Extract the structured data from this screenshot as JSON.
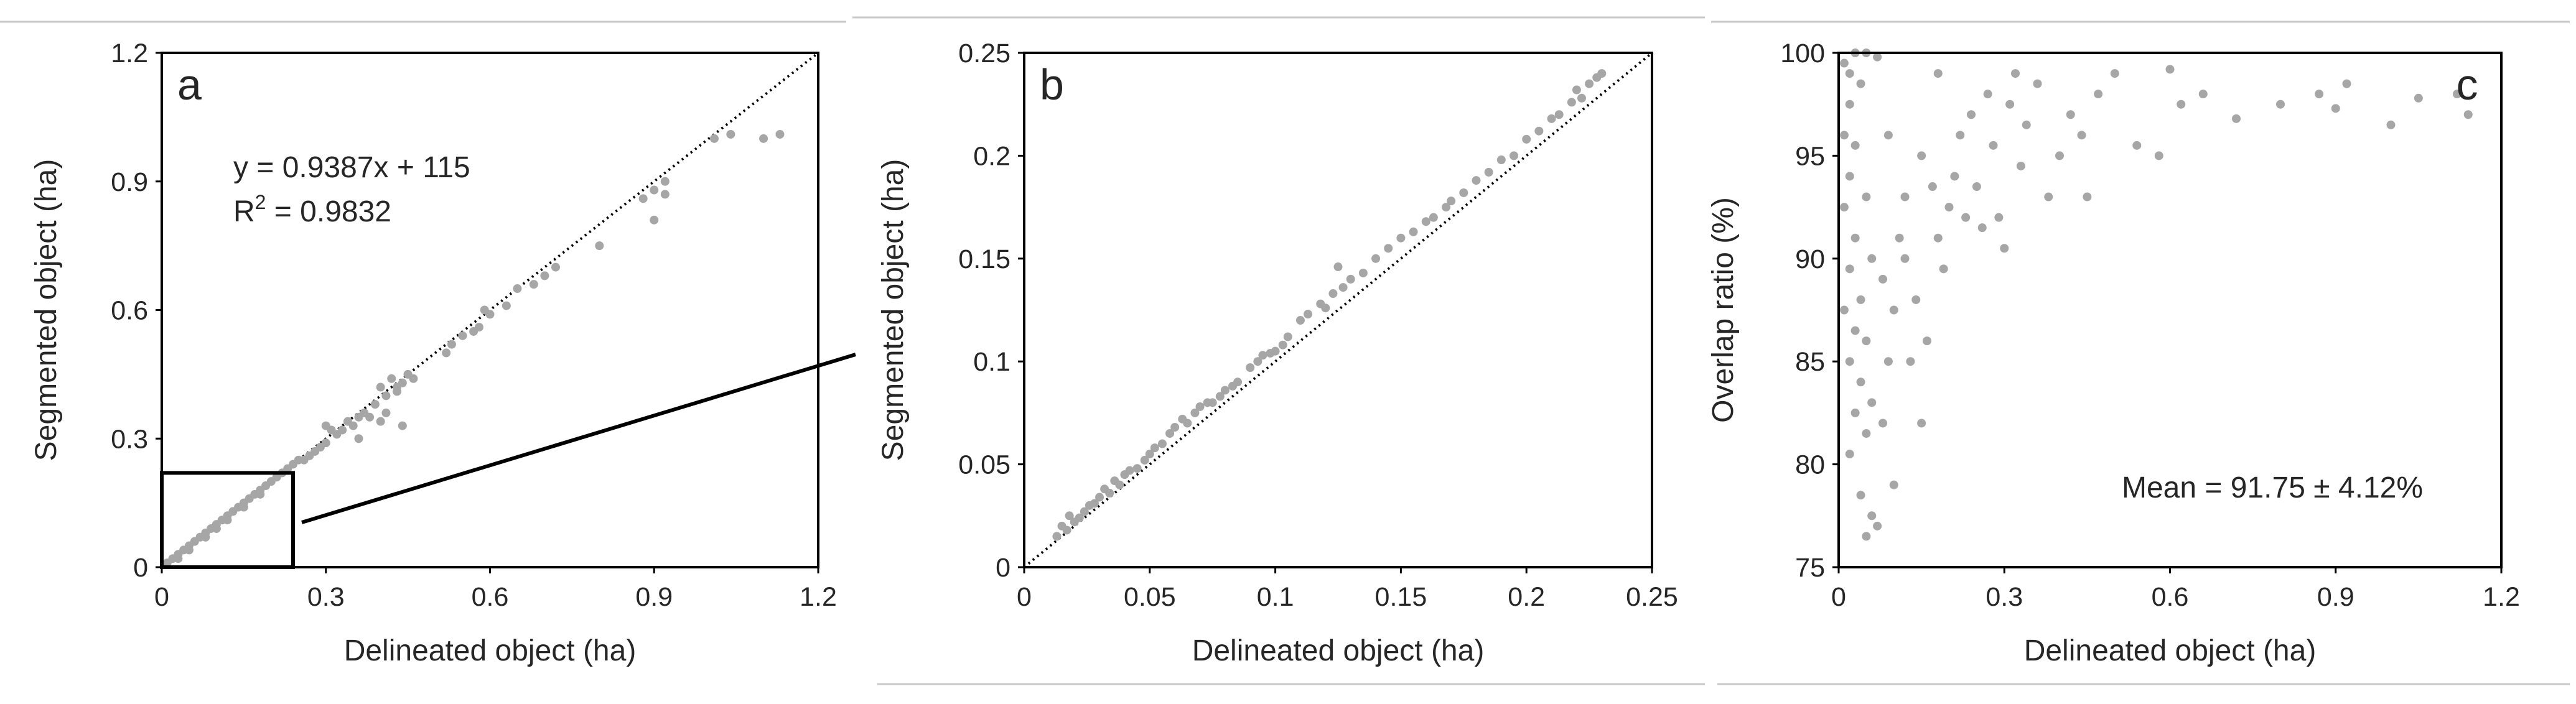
{
  "colors": {
    "points": "#a6a6a6",
    "axes": "#000000",
    "text": "#262626",
    "separator": "#c8c8c8"
  },
  "chart_data": [
    {
      "panel": "a",
      "type": "scatter",
      "xlabel": "Delineated object (ha)",
      "ylabel": "Segmented object (ha)",
      "xlim": [
        0,
        1.2
      ],
      "ylim": [
        0,
        1.2
      ],
      "xticks": [
        "0",
        "0.3",
        "0.6",
        "0.9",
        "1.2"
      ],
      "yticks": [
        "0",
        "0.3",
        "0.6",
        "0.9",
        "1.2"
      ],
      "grid": false,
      "reference_line": "1:1 dotted",
      "inset_box": {
        "x": [
          0,
          0.24
        ],
        "y": [
          0,
          0.22
        ]
      },
      "annotations": {
        "equation": "y = 0.9387x + 115",
        "r2_prefix": "R",
        "r2_sup": "2",
        "r2_value": " = 0.9832"
      },
      "points": [
        [
          0.01,
          0.01
        ],
        [
          0.02,
          0.02
        ],
        [
          0.03,
          0.03
        ],
        [
          0.04,
          0.04
        ],
        [
          0.05,
          0.05
        ],
        [
          0.06,
          0.06
        ],
        [
          0.07,
          0.07
        ],
        [
          0.08,
          0.08
        ],
        [
          0.09,
          0.09
        ],
        [
          0.1,
          0.1
        ],
        [
          0.11,
          0.11
        ],
        [
          0.12,
          0.12
        ],
        [
          0.13,
          0.13
        ],
        [
          0.14,
          0.14
        ],
        [
          0.15,
          0.15
        ],
        [
          0.16,
          0.16
        ],
        [
          0.17,
          0.17
        ],
        [
          0.18,
          0.18
        ],
        [
          0.19,
          0.19
        ],
        [
          0.2,
          0.2
        ],
        [
          0.21,
          0.21
        ],
        [
          0.22,
          0.22
        ],
        [
          0.23,
          0.23
        ],
        [
          0.03,
          0.02
        ],
        [
          0.05,
          0.04
        ],
        [
          0.08,
          0.07
        ],
        [
          0.1,
          0.09
        ],
        [
          0.12,
          0.11
        ],
        [
          0.15,
          0.14
        ],
        [
          0.18,
          0.17
        ],
        [
          0.24,
          0.24
        ],
        [
          0.25,
          0.25
        ],
        [
          0.26,
          0.25
        ],
        [
          0.27,
          0.26
        ],
        [
          0.28,
          0.27
        ],
        [
          0.29,
          0.28
        ],
        [
          0.3,
          0.29
        ],
        [
          0.3,
          0.33
        ],
        [
          0.31,
          0.32
        ],
        [
          0.32,
          0.31
        ],
        [
          0.33,
          0.32
        ],
        [
          0.34,
          0.34
        ],
        [
          0.35,
          0.33
        ],
        [
          0.36,
          0.35
        ],
        [
          0.37,
          0.36
        ],
        [
          0.38,
          0.35
        ],
        [
          0.39,
          0.38
        ],
        [
          0.4,
          0.42
        ],
        [
          0.41,
          0.4
        ],
        [
          0.41,
          0.36
        ],
        [
          0.42,
          0.44
        ],
        [
          0.43,
          0.42
        ],
        [
          0.43,
          0.41
        ],
        [
          0.44,
          0.43
        ],
        [
          0.44,
          0.33
        ],
        [
          0.45,
          0.45
        ],
        [
          0.46,
          0.44
        ],
        [
          0.36,
          0.3
        ],
        [
          0.4,
          0.34
        ],
        [
          0.52,
          0.5
        ],
        [
          0.53,
          0.52
        ],
        [
          0.55,
          0.54
        ],
        [
          0.57,
          0.55
        ],
        [
          0.58,
          0.56
        ],
        [
          0.59,
          0.6
        ],
        [
          0.6,
          0.59
        ],
        [
          0.63,
          0.61
        ],
        [
          0.65,
          0.65
        ],
        [
          0.68,
          0.66
        ],
        [
          0.7,
          0.68
        ],
        [
          0.72,
          0.7
        ],
        [
          0.8,
          0.75
        ],
        [
          0.88,
          0.86
        ],
        [
          0.9,
          0.88
        ],
        [
          0.92,
          0.87
        ],
        [
          0.92,
          0.9
        ],
        [
          0.9,
          0.81
        ],
        [
          1.01,
          1.0
        ],
        [
          1.04,
          1.01
        ],
        [
          1.1,
          1.0
        ],
        [
          1.13,
          1.01
        ]
      ]
    },
    {
      "panel": "b",
      "type": "scatter",
      "xlabel": "Delineated object (ha)",
      "ylabel": "Segmented object (ha)",
      "xlim": [
        0,
        0.25
      ],
      "ylim": [
        0,
        0.25
      ],
      "xticks": [
        "0",
        "0.05",
        "0.1",
        "0.15",
        "0.2",
        "0.25"
      ],
      "yticks": [
        "0",
        "0.05",
        "0.1",
        "0.15",
        "0.2",
        "0.25"
      ],
      "grid": false,
      "reference_line": "1:1 dotted",
      "points": [
        [
          0.013,
          0.015
        ],
        [
          0.015,
          0.02
        ],
        [
          0.017,
          0.018
        ],
        [
          0.018,
          0.025
        ],
        [
          0.02,
          0.022
        ],
        [
          0.022,
          0.024
        ],
        [
          0.024,
          0.027
        ],
        [
          0.026,
          0.03
        ],
        [
          0.028,
          0.031
        ],
        [
          0.03,
          0.034
        ],
        [
          0.032,
          0.038
        ],
        [
          0.034,
          0.036
        ],
        [
          0.036,
          0.042
        ],
        [
          0.038,
          0.04
        ],
        [
          0.04,
          0.045
        ],
        [
          0.042,
          0.047
        ],
        [
          0.045,
          0.048
        ],
        [
          0.048,
          0.052
        ],
        [
          0.05,
          0.055
        ],
        [
          0.052,
          0.058
        ],
        [
          0.055,
          0.06
        ],
        [
          0.058,
          0.065
        ],
        [
          0.06,
          0.068
        ],
        [
          0.063,
          0.072
        ],
        [
          0.065,
          0.07
        ],
        [
          0.068,
          0.075
        ],
        [
          0.07,
          0.078
        ],
        [
          0.073,
          0.08
        ],
        [
          0.075,
          0.08
        ],
        [
          0.078,
          0.083
        ],
        [
          0.08,
          0.086
        ],
        [
          0.083,
          0.088
        ],
        [
          0.085,
          0.09
        ],
        [
          0.09,
          0.097
        ],
        [
          0.093,
          0.1
        ],
        [
          0.095,
          0.103
        ],
        [
          0.098,
          0.104
        ],
        [
          0.1,
          0.105
        ],
        [
          0.103,
          0.108
        ],
        [
          0.105,
          0.112
        ],
        [
          0.11,
          0.12
        ],
        [
          0.113,
          0.123
        ],
        [
          0.118,
          0.128
        ],
        [
          0.12,
          0.126
        ],
        [
          0.123,
          0.133
        ],
        [
          0.125,
          0.146
        ],
        [
          0.127,
          0.136
        ],
        [
          0.13,
          0.14
        ],
        [
          0.135,
          0.143
        ],
        [
          0.14,
          0.15
        ],
        [
          0.145,
          0.155
        ],
        [
          0.15,
          0.16
        ],
        [
          0.155,
          0.163
        ],
        [
          0.16,
          0.168
        ],
        [
          0.163,
          0.17
        ],
        [
          0.168,
          0.175
        ],
        [
          0.17,
          0.178
        ],
        [
          0.175,
          0.182
        ],
        [
          0.18,
          0.188
        ],
        [
          0.185,
          0.192
        ],
        [
          0.19,
          0.198
        ],
        [
          0.195,
          0.2
        ],
        [
          0.2,
          0.208
        ],
        [
          0.205,
          0.212
        ],
        [
          0.21,
          0.218
        ],
        [
          0.213,
          0.22
        ],
        [
          0.218,
          0.226
        ],
        [
          0.22,
          0.232
        ],
        [
          0.222,
          0.228
        ],
        [
          0.225,
          0.235
        ],
        [
          0.228,
          0.238
        ],
        [
          0.23,
          0.24
        ]
      ]
    },
    {
      "panel": "c",
      "type": "scatter",
      "xlabel": "Delineated object (ha)",
      "ylabel": "Overlap ratio (%)",
      "xlim": [
        0,
        1.2
      ],
      "ylim": [
        75,
        100
      ],
      "xticks": [
        "0",
        "0.3",
        "0.6",
        "0.9",
        "1.2"
      ],
      "yticks": [
        "75",
        "80",
        "85",
        "90",
        "95",
        "100"
      ],
      "grid": false,
      "annotations": {
        "mean": "Mean = 91.75 ± 4.12%"
      },
      "points": [
        [
          0.01,
          99.5
        ],
        [
          0.02,
          99.0
        ],
        [
          0.03,
          100
        ],
        [
          0.05,
          100
        ],
        [
          0.07,
          99.8
        ],
        [
          0.04,
          98.5
        ],
        [
          0.02,
          97.5
        ],
        [
          0.01,
          96.0
        ],
        [
          0.03,
          95.5
        ],
        [
          0.02,
          94.0
        ],
        [
          0.05,
          93.0
        ],
        [
          0.01,
          92.5
        ],
        [
          0.03,
          91.0
        ],
        [
          0.06,
          90.0
        ],
        [
          0.02,
          89.5
        ],
        [
          0.04,
          88.0
        ],
        [
          0.01,
          87.5
        ],
        [
          0.03,
          86.5
        ],
        [
          0.05,
          86.0
        ],
        [
          0.02,
          85.0
        ],
        [
          0.04,
          84.0
        ],
        [
          0.06,
          83.0
        ],
        [
          0.03,
          82.5
        ],
        [
          0.05,
          81.5
        ],
        [
          0.02,
          80.5
        ],
        [
          0.04,
          78.5
        ],
        [
          0.06,
          77.5
        ],
        [
          0.05,
          76.5
        ],
        [
          0.07,
          77.0
        ],
        [
          0.1,
          79.0
        ],
        [
          0.08,
          82.0
        ],
        [
          0.09,
          85.0
        ],
        [
          0.1,
          87.5
        ],
        [
          0.08,
          89.0
        ],
        [
          0.12,
          90.0
        ],
        [
          0.14,
          88.0
        ],
        [
          0.13,
          85.0
        ],
        [
          0.15,
          82.0
        ],
        [
          0.16,
          86.0
        ],
        [
          0.12,
          93.0
        ],
        [
          0.15,
          95.0
        ],
        [
          0.17,
          93.5
        ],
        [
          0.18,
          91.0
        ],
        [
          0.19,
          89.5
        ],
        [
          0.2,
          92.5
        ],
        [
          0.21,
          94.0
        ],
        [
          0.22,
          96.0
        ],
        [
          0.23,
          92.0
        ],
        [
          0.24,
          97.0
        ],
        [
          0.25,
          93.5
        ],
        [
          0.26,
          91.5
        ],
        [
          0.27,
          98.0
        ],
        [
          0.28,
          95.5
        ],
        [
          0.29,
          92.0
        ],
        [
          0.3,
          90.5
        ],
        [
          0.31,
          97.5
        ],
        [
          0.32,
          99.0
        ],
        [
          0.33,
          94.5
        ],
        [
          0.34,
          96.5
        ],
        [
          0.36,
          98.5
        ],
        [
          0.38,
          93.0
        ],
        [
          0.4,
          95.0
        ],
        [
          0.42,
          97.0
        ],
        [
          0.44,
          96.0
        ],
        [
          0.45,
          93.0
        ],
        [
          0.47,
          98.0
        ],
        [
          0.5,
          99.0
        ],
        [
          0.54,
          95.5
        ],
        [
          0.58,
          95.0
        ],
        [
          0.6,
          99.2
        ],
        [
          0.62,
          97.5
        ],
        [
          0.66,
          98.0
        ],
        [
          0.72,
          96.8
        ],
        [
          0.8,
          97.5
        ],
        [
          0.87,
          98.0
        ],
        [
          0.9,
          97.3
        ],
        [
          0.92,
          98.5
        ],
        [
          1.0,
          96.5
        ],
        [
          1.05,
          97.8
        ],
        [
          1.12,
          98.0
        ],
        [
          1.14,
          97.0
        ],
        [
          0.18,
          99.0
        ],
        [
          0.09,
          96.0
        ],
        [
          0.11,
          91.0
        ]
      ]
    }
  ]
}
